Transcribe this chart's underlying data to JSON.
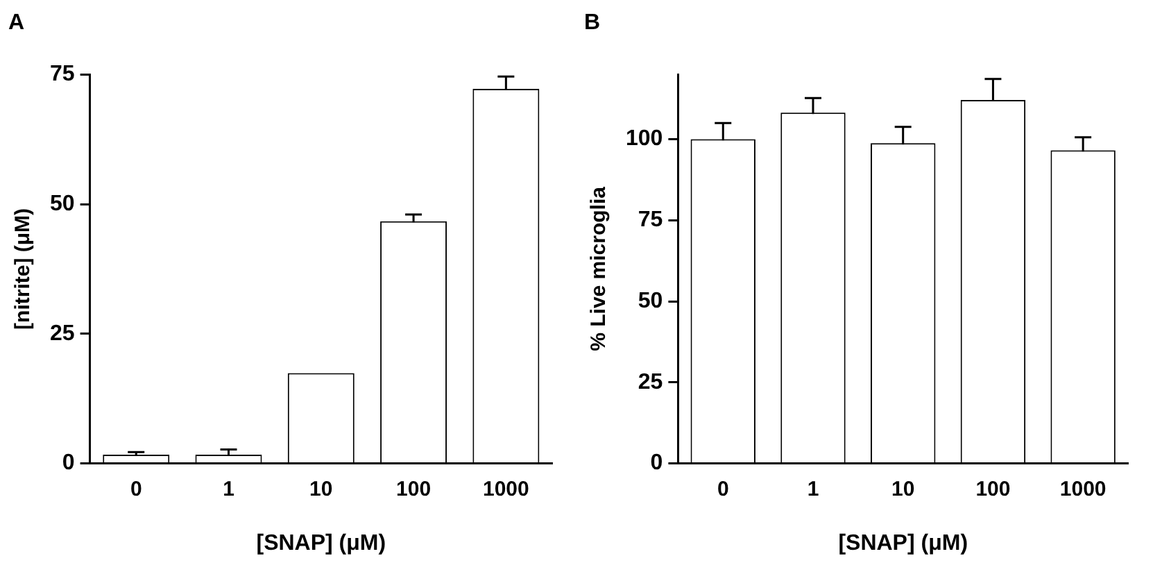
{
  "chart_data": [
    {
      "type": "bar",
      "title": "A",
      "xlabel": "[SNAP] (μM)",
      "ylabel": "[nitrite] (μM)",
      "categories": [
        "0",
        "1",
        "10",
        "100",
        "1000"
      ],
      "series": [
        {
          "color": "#ffffff",
          "values": [
            1.7,
            1.7,
            17.4,
            46.7,
            72.2
          ],
          "errors": [
            0.5,
            1.0,
            null,
            1.3,
            2.4
          ]
        }
      ],
      "ylim": [
        0,
        75
      ],
      "yticks": [
        0,
        25,
        50,
        75
      ],
      "grid": false,
      "legend": false
    },
    {
      "type": "bar",
      "title": "B",
      "xlabel": "[SNAP] (μM)",
      "ylabel": "% Live microglia",
      "categories": [
        "0",
        "1",
        "10",
        "100",
        "1000"
      ],
      "series": [
        {
          "color": "#ffffff",
          "values": [
            100,
            108.2,
            98.8,
            112.1,
            96.6
          ],
          "errors": [
            5,
            4.5,
            5,
            6.5,
            4
          ]
        }
      ],
      "ylim": [
        0,
        120
      ],
      "yticks": [
        0,
        25,
        50,
        75,
        100
      ],
      "grid": false,
      "legend": false
    }
  ]
}
